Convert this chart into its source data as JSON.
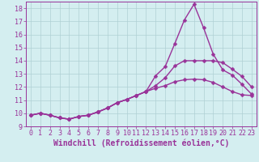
{
  "xlabel": "Windchill (Refroidissement éolien,°C)",
  "background_color": "#d4eef0",
  "line_color": "#993399",
  "grid_color": "#b0d0d4",
  "xlim": [
    -0.5,
    23.5
  ],
  "ylim": [
    9,
    18.5
  ],
  "xticks": [
    0,
    1,
    2,
    3,
    4,
    5,
    6,
    7,
    8,
    9,
    10,
    11,
    12,
    13,
    14,
    15,
    16,
    17,
    18,
    19,
    20,
    21,
    22,
    23
  ],
  "yticks": [
    9,
    10,
    11,
    12,
    13,
    14,
    15,
    16,
    17,
    18
  ],
  "line1_x": [
    0,
    1,
    2,
    3,
    4,
    5,
    6,
    7,
    8,
    9,
    10,
    11,
    12,
    13,
    14,
    15,
    16,
    17,
    18,
    19,
    20,
    21,
    22,
    23
  ],
  "line1_y": [
    9.85,
    10.0,
    9.85,
    9.65,
    9.55,
    9.75,
    9.85,
    10.1,
    10.4,
    10.8,
    11.05,
    11.35,
    11.65,
    12.85,
    13.55,
    15.3,
    17.1,
    18.3,
    16.5,
    14.5,
    13.3,
    12.9,
    12.2,
    11.45
  ],
  "line2_x": [
    0,
    1,
    2,
    3,
    4,
    5,
    6,
    7,
    8,
    9,
    10,
    11,
    12,
    13,
    14,
    15,
    16,
    17,
    18,
    19,
    20,
    21,
    22,
    23
  ],
  "line2_y": [
    9.85,
    10.0,
    9.85,
    9.65,
    9.55,
    9.75,
    9.85,
    10.1,
    10.4,
    10.8,
    11.05,
    11.35,
    11.65,
    12.1,
    12.7,
    13.6,
    14.0,
    14.0,
    14.0,
    14.0,
    13.85,
    13.35,
    12.8,
    12.0
  ],
  "line3_x": [
    0,
    1,
    2,
    3,
    4,
    5,
    6,
    7,
    8,
    9,
    10,
    11,
    12,
    13,
    14,
    15,
    16,
    17,
    18,
    19,
    20,
    21,
    22,
    23
  ],
  "line3_y": [
    9.85,
    10.0,
    9.85,
    9.65,
    9.55,
    9.75,
    9.85,
    10.1,
    10.4,
    10.8,
    11.05,
    11.35,
    11.65,
    11.9,
    12.1,
    12.4,
    12.55,
    12.6,
    12.55,
    12.35,
    12.0,
    11.65,
    11.4,
    11.35
  ],
  "marker": "D",
  "markersize": 2.5,
  "linewidth": 1.0,
  "xlabel_fontsize": 7,
  "tick_fontsize": 6
}
